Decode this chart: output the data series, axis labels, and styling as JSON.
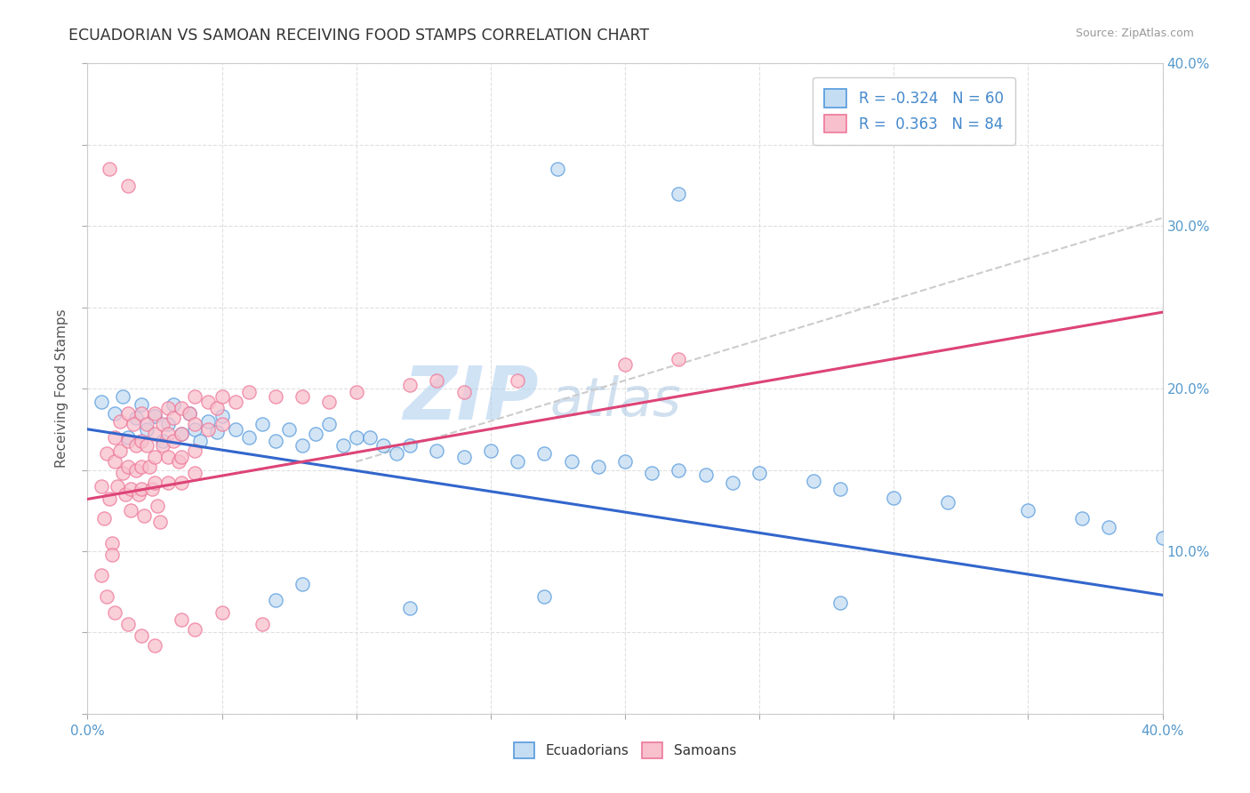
{
  "title": "ECUADORIAN VS SAMOAN RECEIVING FOOD STAMPS CORRELATION CHART",
  "source": "Source: ZipAtlas.com",
  "ylabel": "Receiving Food Stamps",
  "xlim": [
    0.0,
    0.4
  ],
  "ylim": [
    0.0,
    0.4
  ],
  "R_ecuadorian": -0.324,
  "N_ecuadorian": 60,
  "R_samoan": 0.363,
  "N_samoan": 84,
  "color_ecuadorian_fill": "#c5ddf2",
  "color_samoan_fill": "#f7c0cc",
  "color_ecuadorian_edge": "#5599dd",
  "color_samoan_edge": "#ee7799",
  "color_ecuadorian_line": "#3366cc",
  "color_samoan_line": "#dd4477",
  "color_dashed": "#cccccc",
  "watermark_zip": "ZIP",
  "watermark_atlas": "atlas",
  "background_color": "#ffffff",
  "grid_color": "#dddddd",
  "legend_text_color": "#4488cc",
  "ecu_line_x0": 0.0,
  "ecu_line_y0": 0.175,
  "ecu_line_x1": 0.4,
  "ecu_line_y1": 0.073,
  "sam_line_x0": 0.0,
  "sam_line_y0": 0.132,
  "sam_line_x1": 0.4,
  "sam_line_y1": 0.247,
  "dash_line_x0": 0.1,
  "dash_line_y0": 0.155,
  "dash_line_x1": 0.4,
  "dash_line_y1": 0.305,
  "ecuadorian_points": [
    [
      0.005,
      0.192
    ],
    [
      0.01,
      0.185
    ],
    [
      0.013,
      0.195
    ],
    [
      0.015,
      0.17
    ],
    [
      0.018,
      0.182
    ],
    [
      0.02,
      0.19
    ],
    [
      0.022,
      0.175
    ],
    [
      0.025,
      0.183
    ],
    [
      0.028,
      0.168
    ],
    [
      0.03,
      0.178
    ],
    [
      0.032,
      0.19
    ],
    [
      0.035,
      0.172
    ],
    [
      0.038,
      0.185
    ],
    [
      0.04,
      0.175
    ],
    [
      0.042,
      0.168
    ],
    [
      0.045,
      0.18
    ],
    [
      0.048,
      0.173
    ],
    [
      0.05,
      0.183
    ],
    [
      0.055,
      0.175
    ],
    [
      0.06,
      0.17
    ],
    [
      0.065,
      0.178
    ],
    [
      0.07,
      0.168
    ],
    [
      0.075,
      0.175
    ],
    [
      0.08,
      0.165
    ],
    [
      0.085,
      0.172
    ],
    [
      0.09,
      0.178
    ],
    [
      0.095,
      0.165
    ],
    [
      0.1,
      0.17
    ],
    [
      0.105,
      0.17
    ],
    [
      0.11,
      0.165
    ],
    [
      0.115,
      0.16
    ],
    [
      0.12,
      0.165
    ],
    [
      0.13,
      0.162
    ],
    [
      0.14,
      0.158
    ],
    [
      0.15,
      0.162
    ],
    [
      0.16,
      0.155
    ],
    [
      0.17,
      0.16
    ],
    [
      0.18,
      0.155
    ],
    [
      0.19,
      0.152
    ],
    [
      0.2,
      0.155
    ],
    [
      0.21,
      0.148
    ],
    [
      0.22,
      0.15
    ],
    [
      0.23,
      0.147
    ],
    [
      0.24,
      0.142
    ],
    [
      0.25,
      0.148
    ],
    [
      0.27,
      0.143
    ],
    [
      0.28,
      0.138
    ],
    [
      0.3,
      0.133
    ],
    [
      0.32,
      0.13
    ],
    [
      0.35,
      0.125
    ],
    [
      0.37,
      0.12
    ],
    [
      0.38,
      0.115
    ],
    [
      0.4,
      0.108
    ],
    [
      0.175,
      0.335
    ],
    [
      0.22,
      0.32
    ],
    [
      0.07,
      0.07
    ],
    [
      0.12,
      0.065
    ],
    [
      0.17,
      0.072
    ],
    [
      0.08,
      0.08
    ],
    [
      0.28,
      0.068
    ]
  ],
  "samoan_points": [
    [
      0.005,
      0.14
    ],
    [
      0.006,
      0.12
    ],
    [
      0.007,
      0.16
    ],
    [
      0.008,
      0.132
    ],
    [
      0.009,
      0.105
    ],
    [
      0.01,
      0.17
    ],
    [
      0.01,
      0.155
    ],
    [
      0.011,
      0.14
    ],
    [
      0.012,
      0.18
    ],
    [
      0.012,
      0.162
    ],
    [
      0.013,
      0.148
    ],
    [
      0.014,
      0.135
    ],
    [
      0.015,
      0.185
    ],
    [
      0.015,
      0.168
    ],
    [
      0.015,
      0.152
    ],
    [
      0.016,
      0.138
    ],
    [
      0.016,
      0.125
    ],
    [
      0.017,
      0.178
    ],
    [
      0.018,
      0.165
    ],
    [
      0.018,
      0.15
    ],
    [
      0.019,
      0.135
    ],
    [
      0.02,
      0.185
    ],
    [
      0.02,
      0.168
    ],
    [
      0.02,
      0.152
    ],
    [
      0.02,
      0.138
    ],
    [
      0.021,
      0.122
    ],
    [
      0.022,
      0.178
    ],
    [
      0.022,
      0.165
    ],
    [
      0.023,
      0.152
    ],
    [
      0.024,
      0.138
    ],
    [
      0.025,
      0.185
    ],
    [
      0.025,
      0.172
    ],
    [
      0.025,
      0.158
    ],
    [
      0.025,
      0.142
    ],
    [
      0.026,
      0.128
    ],
    [
      0.027,
      0.118
    ],
    [
      0.028,
      0.178
    ],
    [
      0.028,
      0.165
    ],
    [
      0.03,
      0.188
    ],
    [
      0.03,
      0.172
    ],
    [
      0.03,
      0.158
    ],
    [
      0.03,
      0.142
    ],
    [
      0.032,
      0.182
    ],
    [
      0.032,
      0.168
    ],
    [
      0.034,
      0.155
    ],
    [
      0.035,
      0.188
    ],
    [
      0.035,
      0.172
    ],
    [
      0.035,
      0.158
    ],
    [
      0.035,
      0.142
    ],
    [
      0.038,
      0.185
    ],
    [
      0.04,
      0.195
    ],
    [
      0.04,
      0.178
    ],
    [
      0.04,
      0.162
    ],
    [
      0.04,
      0.148
    ],
    [
      0.045,
      0.192
    ],
    [
      0.045,
      0.175
    ],
    [
      0.048,
      0.188
    ],
    [
      0.05,
      0.195
    ],
    [
      0.05,
      0.178
    ],
    [
      0.055,
      0.192
    ],
    [
      0.06,
      0.198
    ],
    [
      0.07,
      0.195
    ],
    [
      0.08,
      0.195
    ],
    [
      0.09,
      0.192
    ],
    [
      0.1,
      0.198
    ],
    [
      0.12,
      0.202
    ],
    [
      0.13,
      0.205
    ],
    [
      0.14,
      0.198
    ],
    [
      0.16,
      0.205
    ],
    [
      0.2,
      0.215
    ],
    [
      0.22,
      0.218
    ],
    [
      0.005,
      0.085
    ],
    [
      0.007,
      0.072
    ],
    [
      0.01,
      0.062
    ],
    [
      0.015,
      0.055
    ],
    [
      0.02,
      0.048
    ],
    [
      0.025,
      0.042
    ],
    [
      0.035,
      0.058
    ],
    [
      0.04,
      0.052
    ],
    [
      0.05,
      0.062
    ],
    [
      0.065,
      0.055
    ],
    [
      0.009,
      0.098
    ],
    [
      0.008,
      0.335
    ],
    [
      0.015,
      0.325
    ]
  ]
}
